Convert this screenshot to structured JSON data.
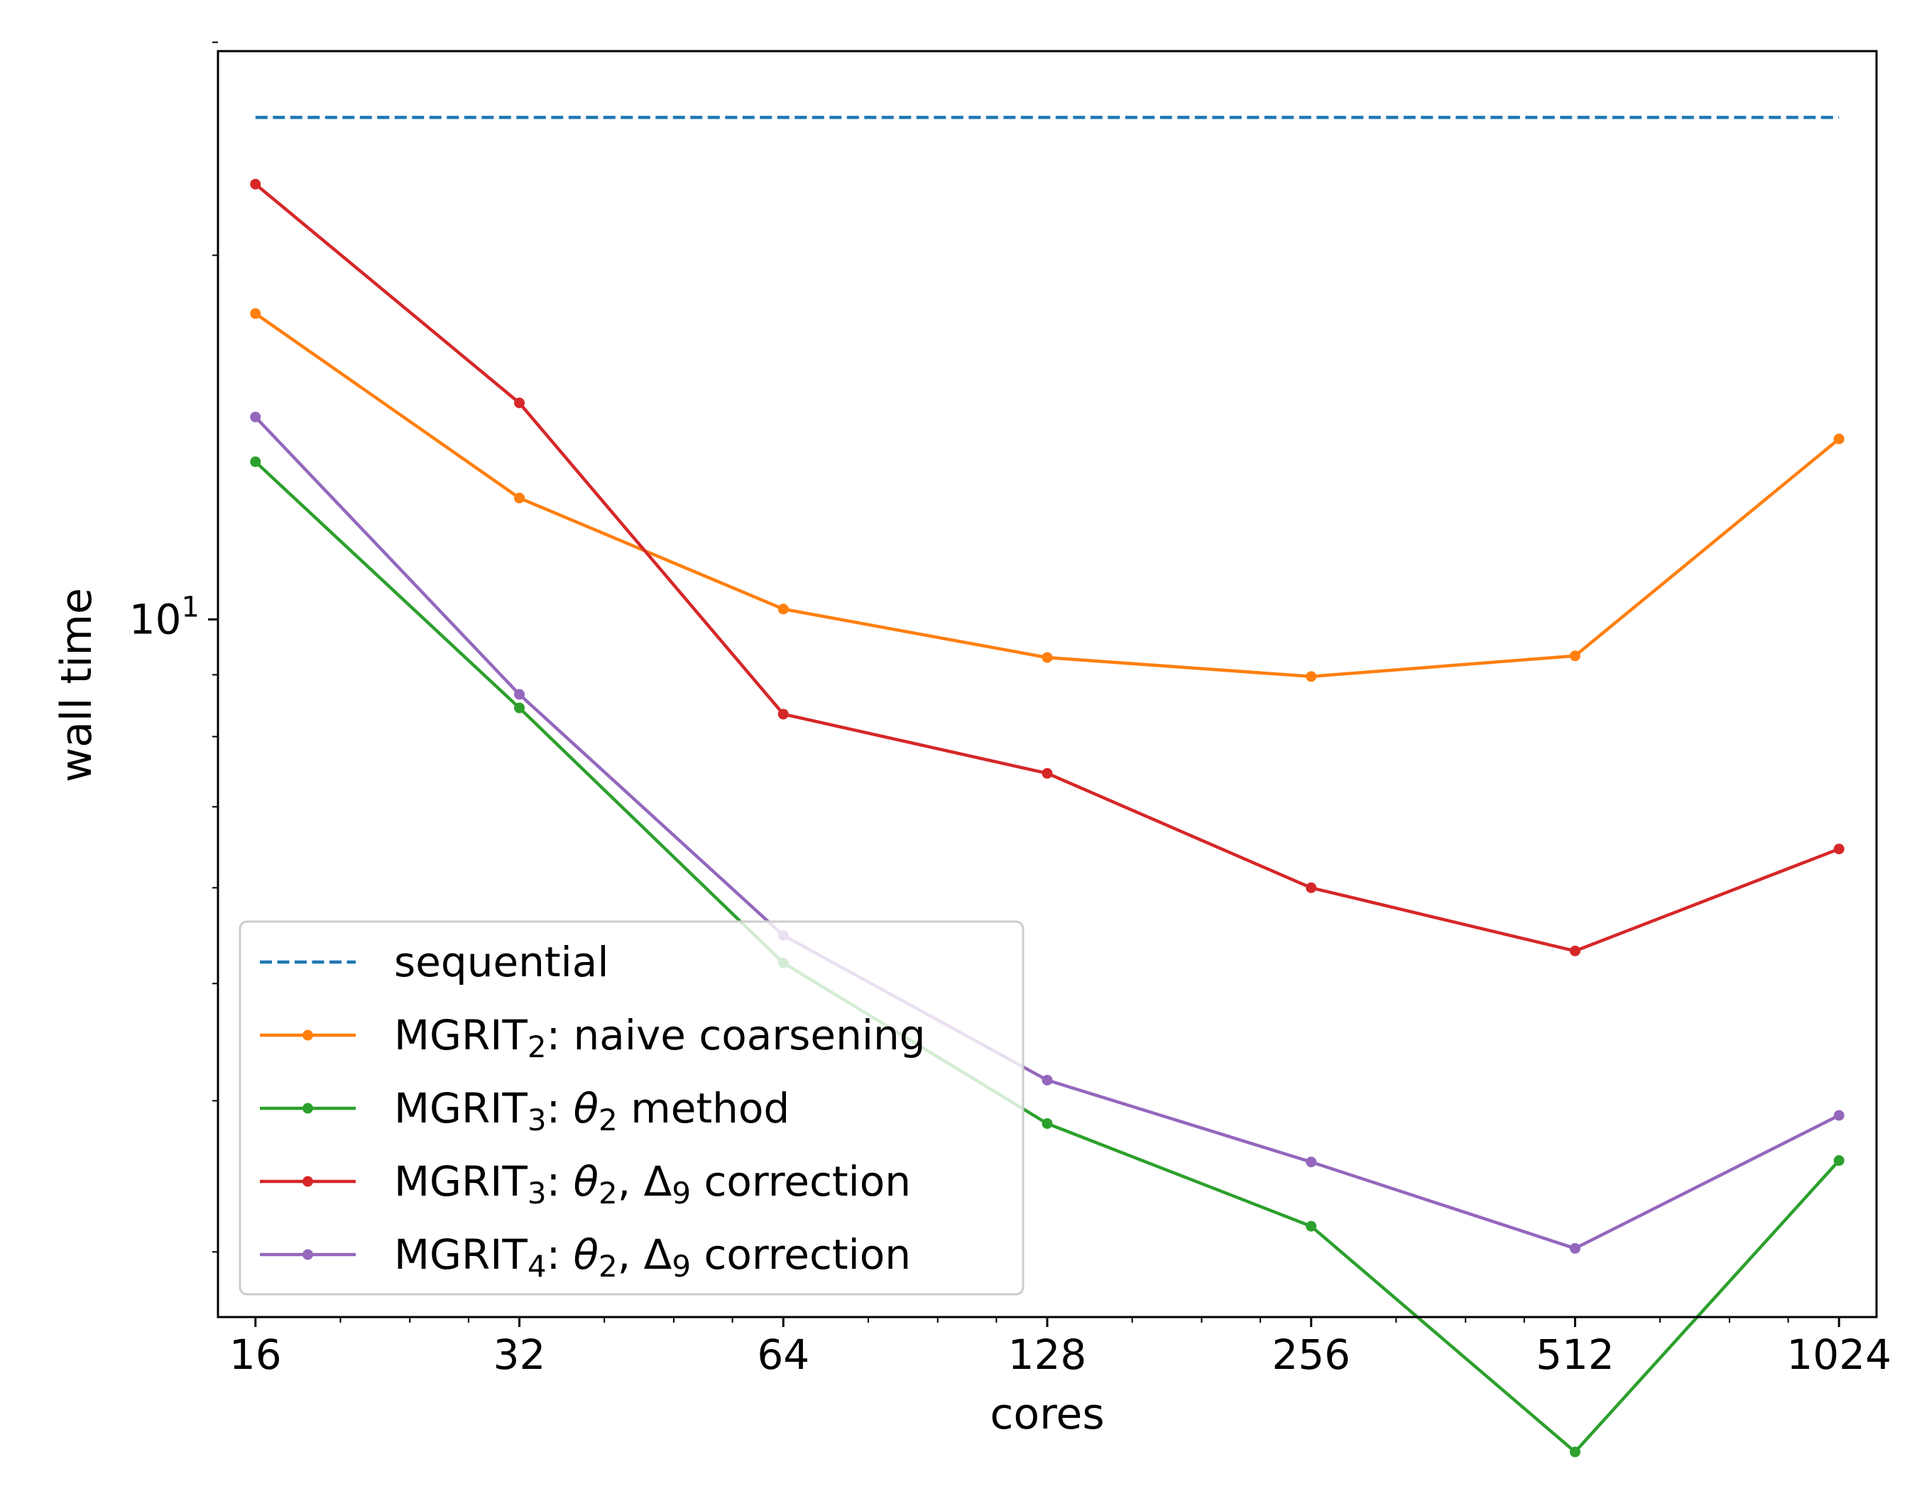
{
  "chart_data": {
    "type": "line",
    "xlabel": "cores",
    "ylabel": "wall time",
    "x_scale": "log2",
    "y_scale": "log",
    "x": [
      16,
      32,
      64,
      128,
      256,
      512,
      1024
    ],
    "x_tick_labels": [
      "16",
      "32",
      "64",
      "128",
      "256",
      "512",
      "1024"
    ],
    "y_major_ticks": [
      {
        "value": 10,
        "base": "10",
        "exp": "1"
      }
    ],
    "y_minor_ticks": [
      3,
      4,
      5,
      6,
      7,
      8,
      9,
      20,
      30
    ],
    "xlim": [
      14.5,
      1130
    ],
    "ylim": [
      2.65,
      29.5
    ],
    "grid": false,
    "legend_position": "lower-left",
    "series": [
      {
        "key": "sequential",
        "label_parts": [
          {
            "t": "sequential"
          }
        ],
        "color": "#1f77b4",
        "dashed": true,
        "markers": false,
        "values": [
          26.0,
          26.0,
          26.0,
          26.0,
          26.0,
          26.0,
          26.0
        ]
      },
      {
        "key": "mgrit2-naive",
        "label_parts": [
          {
            "t": "MGRIT"
          },
          {
            "t": "2",
            "sub": true
          },
          {
            "t": ": naive coarsening"
          }
        ],
        "color": "#ff7f0e",
        "dashed": false,
        "markers": true,
        "values": [
          17.9,
          12.6,
          10.2,
          9.3,
          8.97,
          9.33,
          14.1
        ]
      },
      {
        "key": "mgrit3-theta2",
        "label_parts": [
          {
            "t": "MGRIT"
          },
          {
            "t": "3",
            "sub": true
          },
          {
            "t": ": "
          },
          {
            "t": "θ",
            "italic": true
          },
          {
            "t": "2",
            "sub": true
          },
          {
            "t": " method"
          }
        ],
        "color": "#2ca02c",
        "dashed": false,
        "markers": true,
        "values": [
          13.5,
          8.45,
          5.2,
          3.83,
          3.15,
          2.05,
          3.57
        ]
      },
      {
        "key": "mgrit3-theta2-delta9",
        "label_parts": [
          {
            "t": "MGRIT"
          },
          {
            "t": "3",
            "sub": true
          },
          {
            "t": ": "
          },
          {
            "t": "θ",
            "italic": true
          },
          {
            "t": "2",
            "sub": true
          },
          {
            "t": ", Δ"
          },
          {
            "t": "9",
            "sub": true
          },
          {
            "t": " correction"
          }
        ],
        "color": "#d62728",
        "dashed": false,
        "markers": true,
        "values": [
          22.9,
          15.1,
          8.35,
          7.46,
          6.0,
          5.32,
          6.46
        ]
      },
      {
        "key": "mgrit4-theta2-delta9",
        "label_parts": [
          {
            "t": "MGRIT"
          },
          {
            "t": "4",
            "sub": true
          },
          {
            "t": ": "
          },
          {
            "t": "θ",
            "italic": true
          },
          {
            "t": "2",
            "sub": true
          },
          {
            "t": ", Δ"
          },
          {
            "t": "9",
            "sub": true
          },
          {
            "t": " correction"
          }
        ],
        "color": "#9467bd",
        "dashed": false,
        "markers": true,
        "values": [
          14.7,
          8.67,
          5.48,
          4.16,
          3.56,
          3.02,
          3.89
        ]
      }
    ]
  }
}
